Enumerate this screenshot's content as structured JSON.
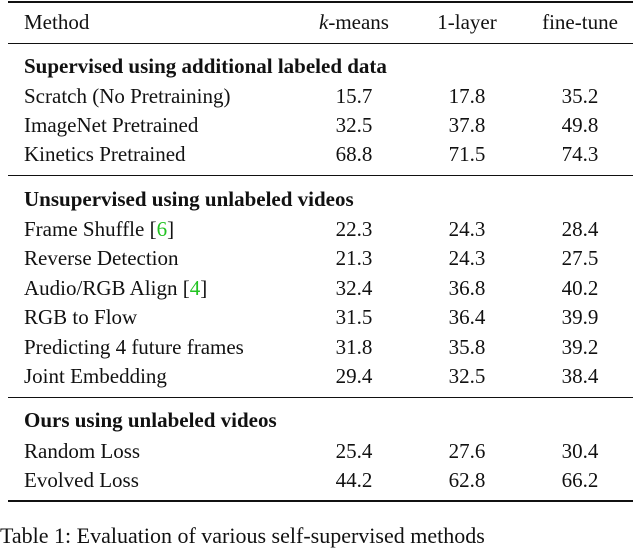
{
  "header": {
    "method": "Method",
    "kmeans_k": "k",
    "kmeans_rest": "-means",
    "one_layer": "1-layer",
    "fine_tune": "fine-tune"
  },
  "sections": [
    {
      "title": "Supervised using additional labeled data",
      "rows": [
        {
          "method": "Scratch (No Pretraining)",
          "cite": "",
          "kmeans": "15.7",
          "one_layer": "17.8",
          "fine_tune": "35.2"
        },
        {
          "method": "ImageNet Pretrained",
          "cite": "",
          "kmeans": "32.5",
          "one_layer": "37.8",
          "fine_tune": "49.8"
        },
        {
          "method": "Kinetics Pretrained",
          "cite": "",
          "kmeans": "68.8",
          "one_layer": "71.5",
          "fine_tune": "74.3"
        }
      ]
    },
    {
      "title": "Unsupervised using unlabeled videos",
      "rows": [
        {
          "method": "Frame Shuffle [",
          "cite": "6",
          "cite_close": "]",
          "kmeans": "22.3",
          "one_layer": "24.3",
          "fine_tune": "28.4"
        },
        {
          "method": "Reverse Detection",
          "cite": "",
          "kmeans": "21.3",
          "one_layer": "24.3",
          "fine_tune": "27.5"
        },
        {
          "method": "Audio/RGB Align [",
          "cite": "4",
          "cite_close": "]",
          "kmeans": "32.4",
          "one_layer": "36.8",
          "fine_tune": "40.2"
        },
        {
          "method": "RGB to Flow",
          "cite": "",
          "kmeans": "31.5",
          "one_layer": "36.4",
          "fine_tune": "39.9"
        },
        {
          "method": "Predicting 4 future frames",
          "cite": "",
          "kmeans": "31.8",
          "one_layer": "35.8",
          "fine_tune": "39.2"
        },
        {
          "method": "Joint Embedding",
          "cite": "",
          "kmeans": "29.4",
          "one_layer": "32.5",
          "fine_tune": "38.4"
        }
      ]
    },
    {
      "title": "Ours using unlabeled videos",
      "rows": [
        {
          "method": "Random Loss",
          "cite": "",
          "kmeans": "25.4",
          "one_layer": "27.6",
          "fine_tune": "30.4"
        },
        {
          "method": "Evolved Loss",
          "cite": "",
          "kmeans": "44.2",
          "one_layer": "62.8",
          "fine_tune": "66.2"
        }
      ]
    }
  ],
  "caption": "Table 1: Evaluation of various self-supervised methods"
}
